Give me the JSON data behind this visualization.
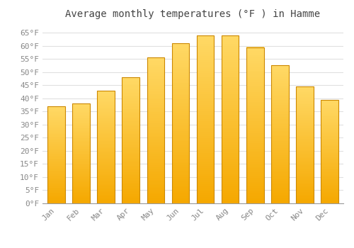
{
  "title": "Average monthly temperatures (°F ) in Hamme",
  "months": [
    "Jan",
    "Feb",
    "Mar",
    "Apr",
    "May",
    "Jun",
    "Jul",
    "Aug",
    "Sep",
    "Oct",
    "Nov",
    "Dec"
  ],
  "values": [
    37,
    38,
    43,
    48,
    55.5,
    61,
    64,
    64,
    59.5,
    52.5,
    44.5,
    39.5
  ],
  "ylim": [
    0,
    68
  ],
  "yticks": [
    0,
    5,
    10,
    15,
    20,
    25,
    30,
    35,
    40,
    45,
    50,
    55,
    60,
    65
  ],
  "bar_color_bottom": "#F5A800",
  "bar_color_top": "#FFD966",
  "bar_edge_color": "#CC8800",
  "background_color": "#ffffff",
  "grid_color": "#e0e0e0",
  "title_fontsize": 10,
  "tick_fontsize": 8,
  "title_color": "#444444",
  "tick_color": "#888888",
  "font_family": "monospace",
  "bar_width": 0.7
}
